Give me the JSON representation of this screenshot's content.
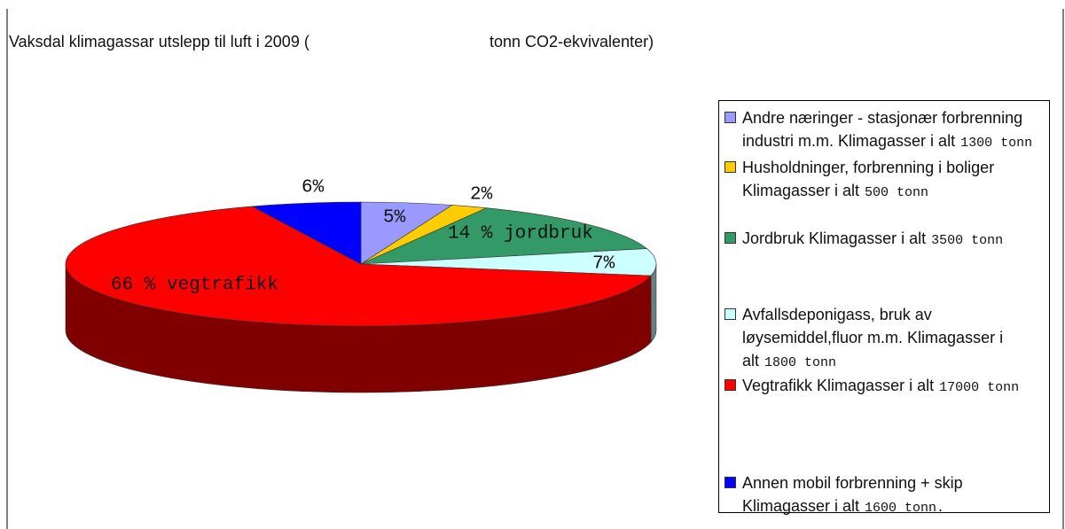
{
  "chart_data": {
    "type": "pie",
    "title": "Vaksdal klimagassar utslepp til luft i 2009 (",
    "title_end": "tonn CO2-ekvivalenter)",
    "categories": [
      "Andre næringer - stasjonær forbrenning industri m.m. Klimagasser i alt",
      "Husholdninger, forbrenning i boliger Klimagasser i alt",
      "Jordbruk Klimagasser i alt",
      "Avfallsdeponigass, bruk av løysemiddel,fluor m.m. Klimagasser i alt",
      "Vegtrafikk Klimagasser i alt",
      "Annen mobil forbrenning + skip Klimagasser i alt"
    ],
    "legend_amounts": [
      "1300 tonn",
      "500 tonn",
      "3500 tonn",
      "1800 tonn",
      "17000 tonn",
      "1600 tonn."
    ],
    "values": [
      5,
      2,
      14,
      7,
      66,
      6
    ],
    "value_labels": [
      "5%",
      "2%",
      "14 % jordbruk",
      "7%",
      "66 % vegtrafikk",
      "6%"
    ],
    "colors": [
      "#9999ff",
      "#ffcc00",
      "#339966",
      "#ccffff",
      "#ff0000",
      "#0000ff"
    ],
    "legend": "right"
  }
}
